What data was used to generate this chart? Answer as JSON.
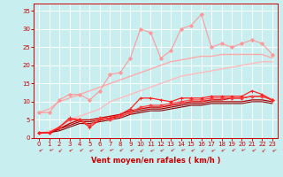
{
  "background_color": "#c8eef0",
  "grid_color": "#ffffff",
  "xlabel": "Vent moyen/en rafales ( km/h )",
  "xlabel_color": "#cc0000",
  "tick_color": "#cc0000",
  "xlim": [
    -0.5,
    23.5
  ],
  "ylim": [
    0,
    37
  ],
  "yticks": [
    0,
    5,
    10,
    15,
    20,
    25,
    30,
    35
  ],
  "xticks": [
    0,
    1,
    2,
    3,
    4,
    5,
    6,
    7,
    8,
    9,
    10,
    11,
    12,
    13,
    14,
    15,
    16,
    17,
    18,
    19,
    20,
    21,
    22,
    23
  ],
  "lines": [
    {
      "x": [
        0,
        1,
        2,
        3,
        4,
        5,
        6,
        7,
        8,
        9,
        10,
        11,
        12,
        13,
        14,
        15,
        16,
        17,
        18,
        19,
        20,
        21,
        22,
        23
      ],
      "y": [
        7,
        7,
        10.5,
        12,
        12,
        10.5,
        13,
        17.5,
        18,
        22,
        30,
        29,
        22,
        24,
        30,
        31,
        34,
        25,
        26,
        25,
        26,
        27,
        26,
        23
      ],
      "color": "#ff9999",
      "lw": 0.8,
      "marker": "D",
      "ms": 2.0,
      "zorder": 3
    },
    {
      "x": [
        0,
        1,
        2,
        3,
        4,
        5,
        6,
        7,
        8,
        9,
        10,
        11,
        12,
        13,
        14,
        15,
        16,
        17,
        18,
        19,
        20,
        21,
        22,
        23
      ],
      "y": [
        7,
        8,
        10,
        11,
        12,
        13,
        14,
        15,
        16,
        17,
        18,
        19,
        20,
        21,
        21.5,
        22,
        22.5,
        22.5,
        23,
        23,
        23,
        23,
        23,
        22
      ],
      "color": "#ffaaaa",
      "lw": 1.0,
      "marker": null,
      "ms": 0,
      "zorder": 2
    },
    {
      "x": [
        0,
        1,
        2,
        3,
        4,
        5,
        6,
        7,
        8,
        9,
        10,
        11,
        12,
        13,
        14,
        15,
        16,
        17,
        18,
        19,
        20,
        21,
        22,
        23
      ],
      "y": [
        1,
        2,
        3,
        5,
        6,
        7,
        8,
        10,
        11,
        12,
        13,
        14,
        15,
        16,
        17,
        17.5,
        18,
        18.5,
        19,
        19.5,
        20,
        20.5,
        21,
        21
      ],
      "color": "#ffbbbb",
      "lw": 1.0,
      "marker": null,
      "ms": 0,
      "zorder": 2
    },
    {
      "x": [
        0,
        1,
        2,
        3,
        4,
        5,
        6,
        7,
        8,
        9,
        10,
        11,
        12,
        13,
        14,
        15,
        16,
        17,
        18,
        19,
        20,
        21,
        22,
        23
      ],
      "y": [
        1.5,
        1.5,
        3,
        5.5,
        5,
        3,
        5,
        5.5,
        6.5,
        8,
        11,
        11,
        10.5,
        10,
        11,
        11,
        11,
        11.5,
        11.5,
        11.5,
        11.5,
        13,
        12,
        10.5
      ],
      "color": "#ff2222",
      "lw": 0.9,
      "marker": "+",
      "ms": 3.0,
      "zorder": 4
    },
    {
      "x": [
        0,
        1,
        2,
        3,
        4,
        5,
        6,
        7,
        8,
        9,
        10,
        11,
        12,
        13,
        14,
        15,
        16,
        17,
        18,
        19,
        20,
        21,
        22,
        23
      ],
      "y": [
        1.5,
        1.5,
        2.5,
        4,
        5,
        5,
        5.5,
        6,
        6.5,
        7.5,
        8,
        8.5,
        8.5,
        9,
        9.5,
        10,
        10,
        10.5,
        10.5,
        11,
        11,
        11.5,
        11.5,
        10.5
      ],
      "color": "#cc0000",
      "lw": 1.0,
      "marker": null,
      "ms": 0,
      "zorder": 3
    },
    {
      "x": [
        0,
        1,
        2,
        3,
        4,
        5,
        6,
        7,
        8,
        9,
        10,
        11,
        12,
        13,
        14,
        15,
        16,
        17,
        18,
        19,
        20,
        21,
        22,
        23
      ],
      "y": [
        1.5,
        1.5,
        2.5,
        3.5,
        4.5,
        4.5,
        5,
        5.5,
        6,
        7,
        7.5,
        8,
        8,
        8.5,
        9,
        9.5,
        9.5,
        10,
        10,
        10,
        10,
        10.5,
        10.5,
        10
      ],
      "color": "#aa0000",
      "lw": 0.9,
      "marker": null,
      "ms": 0,
      "zorder": 2
    },
    {
      "x": [
        0,
        1,
        2,
        3,
        4,
        5,
        6,
        7,
        8,
        9,
        10,
        11,
        12,
        13,
        14,
        15,
        16,
        17,
        18,
        19,
        20,
        21,
        22,
        23
      ],
      "y": [
        1.5,
        1.5,
        2,
        3,
        4,
        4,
        4.5,
        5,
        5.5,
        6.5,
        7,
        7.5,
        7.5,
        8,
        8.5,
        9,
        9,
        9.5,
        9.5,
        9.5,
        9.5,
        10,
        10,
        9.5
      ],
      "color": "#880000",
      "lw": 0.8,
      "marker": null,
      "ms": 0,
      "zorder": 2
    },
    {
      "x": [
        0,
        1,
        2,
        3,
        4,
        5,
        6,
        7,
        8,
        9,
        10,
        11,
        12,
        13,
        14,
        15,
        16,
        17,
        18,
        19,
        20,
        21,
        22,
        23
      ],
      "y": [
        1.5,
        1.5,
        3,
        5,
        5,
        3.5,
        5.5,
        5,
        6,
        7,
        8.5,
        9,
        9,
        9.5,
        10,
        10.5,
        10.5,
        11,
        11,
        11,
        11,
        11.5,
        11.5,
        10.5
      ],
      "color": "#ff4444",
      "lw": 0.9,
      "marker": "D",
      "ms": 1.8,
      "zorder": 3
    }
  ]
}
